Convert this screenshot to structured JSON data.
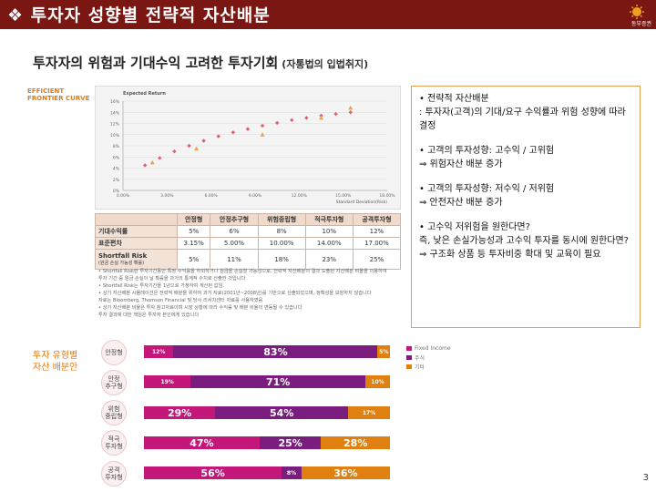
{
  "header": {
    "title": "❖ 투자자 성향별 전략적 자산배분",
    "logo_text": "동부증권"
  },
  "subtitle": {
    "main": "투자자의 위험과 기대수익 고려한 투자기회",
    "note": "(자통법의 입법취지)"
  },
  "sidelabels": {
    "efficient": "EFFICIENT\nFRONTIER CURVE",
    "allocation": "투자 유형별\n자산 배분안"
  },
  "colors": {
    "header_bg": "#7a1712",
    "risky": "#c4177a",
    "safe": "#7a1d7e",
    "other": "#e08010",
    "accent": "#e87a10"
  },
  "chart_data": {
    "type": "scatter",
    "title": "Expected Return",
    "xlabel": "Standard Deviation(Risk)",
    "ylabel": "Expected Return",
    "x_ticks": [
      "0.00%",
      "3.00%",
      "6.00%",
      "9.00%",
      "12.00%",
      "15.00%",
      "18.00%"
    ],
    "y_ticks": [
      "0%",
      "2%",
      "4%",
      "6%",
      "8%",
      "10%",
      "12%",
      "14%",
      "16%"
    ],
    "xlim": [
      0,
      18
    ],
    "ylim": [
      0,
      16
    ],
    "series": [
      {
        "name": "frontier",
        "marker": "diamond",
        "x": [
          1.5,
          2.5,
          3.5,
          4.5,
          5.5,
          6.5,
          7.5,
          8.5,
          9.5,
          10.5,
          11.5,
          12.5,
          13.5,
          14.5,
          15.5
        ],
        "y": [
          4.5,
          5.8,
          7.0,
          8.0,
          8.9,
          9.7,
          10.4,
          11.0,
          11.6,
          12.1,
          12.6,
          13.0,
          13.4,
          13.7,
          14.0
        ]
      },
      {
        "name": "portfolios",
        "marker": "triangle",
        "x": [
          2.0,
          5.0,
          9.5,
          13.5,
          15.5
        ],
        "y": [
          5.0,
          7.5,
          10.0,
          13.0,
          14.8
        ]
      }
    ]
  },
  "frontier_table": {
    "headers": [
      "",
      "안정형",
      "안정추구형",
      "위험중립형",
      "적극투자형",
      "공격투자형"
    ],
    "rows": [
      {
        "label": "기대수익률",
        "values": [
          "5%",
          "6%",
          "8%",
          "10%",
          "12%"
        ]
      },
      {
        "label": "표준편차",
        "values": [
          "3.15%",
          "5.00%",
          "10.00%",
          "14.00%",
          "17.00%"
        ]
      },
      {
        "label": "Shortfall Risk",
        "sublabel": "(원금 손실 가능성 확률)",
        "values": [
          "5%",
          "11%",
          "18%",
          "23%",
          "25%"
        ]
      }
    ]
  },
  "notes": [
    "• Shortfall Risk란 투자기간동안 특정 수익률을 하회하거나 원금을 손실할 가능성으로, 전략적 자산배분의 결과 도출된 자산배분 비율을 이용하여",
    "  투자 기간 중 원금 손실이 날 확률을 과거의 통계적 수치로 산출한 것입니다",
    "• Shortfall Risk는 투자기간을 1년으로 가정하여 계산된 값임.",
    "• 상기 자산배분 시뮬레이션은 전략적 배분을 위하여 과거 자료(2001년~2008년)를 기반으로 산출되었으며, 정확성을 보장하지 않습니다",
    "  자료는 Bloomberg, Thomson Financial 및 당사 리서치센터 자료를 사용하였음",
    "• 상기 자산배분 비율은 투자 참고자료이며 시장 상황에 따라 수익률 및 배분 비율이 변동될 수 있습니다",
    "  투자 결과에 대한 책임은 투자자 본인에게 있습니다"
  ],
  "textbox": {
    "paragraphs": [
      "• 전략적 자산배분\n: 투자자(고객)의 기대/요구 수익률과 위험 성향에 따라 결정",
      "• 고객의 투자성향: 고수익 / 고위험\n  ⇒ 위험자산 배분 증가",
      "• 고객의 투자성향: 저수익 / 저위험\n  ⇒ 안전자산 배분 증가",
      "• 고수익 저위험을 원한다면?\n  즉, 낮은 손실가능성과 고수익 투자를 동시에 원한다면?\n  ⇒ 구조화 상품 등 투자비중 확대 및 교육이 필요"
    ]
  },
  "allocation": {
    "legend": [
      "Fixed Income",
      "주식",
      "기타"
    ],
    "rows": [
      {
        "label": "안정형",
        "segments": [
          {
            "v": 12,
            "t": "12%"
          },
          {
            "v": 83,
            "t": "83%"
          },
          {
            "v": 5,
            "t": "5%"
          }
        ],
        "order": [
          "risky",
          "safe",
          "other"
        ]
      },
      {
        "label": "안정\n추구형",
        "segments": [
          {
            "v": 19,
            "t": "19%"
          },
          {
            "v": 71,
            "t": "71%"
          },
          {
            "v": 10,
            "t": "10%"
          }
        ],
        "order": [
          "risky",
          "safe",
          "other"
        ]
      },
      {
        "label": "위험\n중립형",
        "segments": [
          {
            "v": 29,
            "t": "29%"
          },
          {
            "v": 54,
            "t": "54%"
          },
          {
            "v": 17,
            "t": "17%"
          }
        ],
        "order": [
          "risky",
          "safe",
          "other"
        ]
      },
      {
        "label": "적극\n투자형",
        "segments": [
          {
            "v": 47,
            "t": "47%"
          },
          {
            "v": 25,
            "t": "25%"
          },
          {
            "v": 28,
            "t": "28%"
          }
        ],
        "order": [
          "risky",
          "safe",
          "other"
        ]
      },
      {
        "label": "공격\n투자형",
        "segments": [
          {
            "v": 56,
            "t": "56%"
          },
          {
            "v": 8,
            "t": "8%"
          },
          {
            "v": 36,
            "t": "36%"
          }
        ],
        "order": [
          "risky",
          "safe",
          "other"
        ]
      }
    ]
  },
  "page_number": "3"
}
